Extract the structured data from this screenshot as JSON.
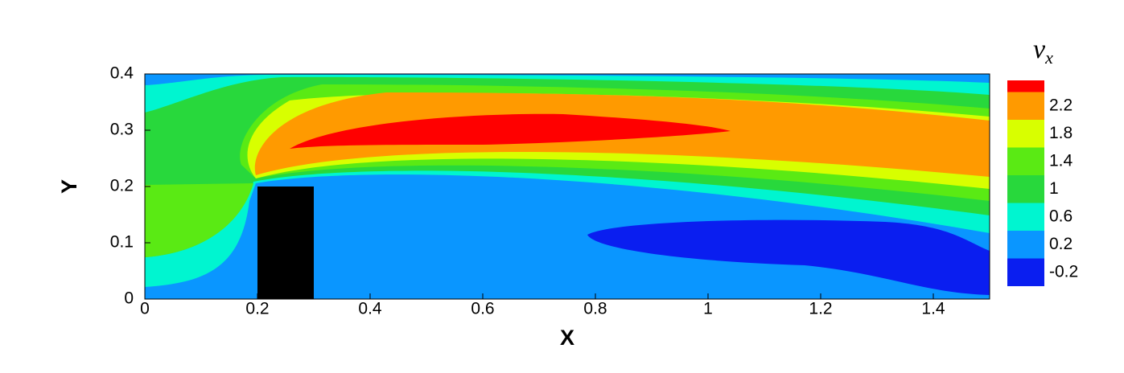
{
  "chart_data": {
    "type": "contour",
    "x_label": "X",
    "y_label": "Y",
    "colorbar_label": {
      "symbol": "v",
      "subscript": "x"
    },
    "xlim": [
      0,
      1.5
    ],
    "ylim": [
      0,
      0.4
    ],
    "xticks": [
      0,
      0.2,
      0.4,
      0.6,
      0.8,
      1,
      1.2,
      1.4
    ],
    "yticks": [
      0,
      0.1,
      0.2,
      0.3,
      0.4
    ],
    "levels": [
      -0.2,
      0.2,
      0.6,
      1,
      1.4,
      1.8,
      2.2
    ],
    "colors": [
      "#0a1ef0",
      "#0a96ff",
      "#00f5d0",
      "#28d83c",
      "#5aea14",
      "#d8ff00",
      "#ff9a00",
      "#ff0000"
    ]
  }
}
